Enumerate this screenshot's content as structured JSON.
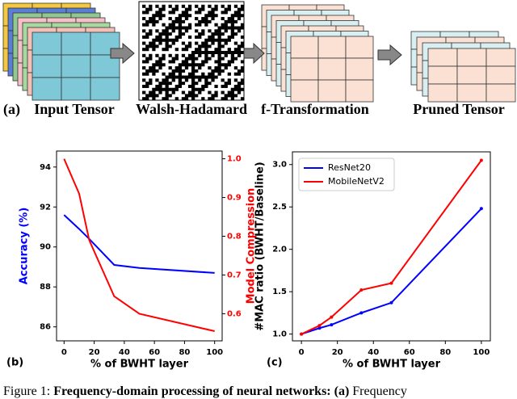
{
  "panel_a": {
    "label": "(a)",
    "items": [
      "Input Tensor",
      "Walsh-Hadamard",
      "f-Transformation",
      "Pruned Tensor"
    ]
  },
  "chart_data": [
    {
      "type": "line",
      "panel": "(b)",
      "xlabel": "% of BWHT layer",
      "ylabel": "Accuracy (%)",
      "y2label": "Model Compression",
      "x": [
        0,
        10,
        16.7,
        33.3,
        50,
        100
      ],
      "xlim": [
        -5,
        105
      ],
      "xticks": [
        0,
        20,
        40,
        60,
        80,
        100
      ],
      "ylim": [
        85.3,
        94.8
      ],
      "yticks": [
        86,
        88,
        90,
        92,
        94
      ],
      "y2lim": [
        0.53,
        1.02
      ],
      "y2ticks": [
        0.6,
        0.7,
        0.8,
        0.9,
        {
          "value": 1,
          "label": "1.0"
        }
      ],
      "ylabel_color": "#0000ff",
      "y2label_color": "#ff0000",
      "series": [
        {
          "color": "#0000ff",
          "values": [
            91.6,
            90.9,
            90.4,
            89.1,
            88.95,
            88.7
          ]
        },
        {
          "color": "#ff0000",
          "axis": "y2",
          "values": [
            1.0,
            0.91,
            0.79,
            0.645,
            0.6,
            0.555
          ]
        }
      ]
    },
    {
      "type": "line",
      "panel": "(c)",
      "xlabel": "% of BWHT layer",
      "ylabel": "#MAC ratio (BWHT/Baseline)",
      "x": [
        0,
        10,
        16.7,
        33.3,
        50,
        100
      ],
      "xlim": [
        -5,
        105
      ],
      "xticks": [
        0,
        20,
        40,
        60,
        80,
        100
      ],
      "ylim": [
        0.92,
        3.15
      ],
      "yticks": [
        {
          "value": 1,
          "label": "1.0"
        },
        1.5,
        {
          "value": 2,
          "label": "2.0"
        },
        2.5,
        {
          "value": 3,
          "label": "3.0"
        }
      ],
      "legend": "upper left",
      "markers": true,
      "series": [
        {
          "name": "ResNet20",
          "color": "#0000ff",
          "values": [
            1.0,
            1.07,
            1.11,
            1.25,
            1.37,
            2.48
          ]
        },
        {
          "name": "MobileNetV2",
          "color": "#ff0000",
          "values": [
            1.0,
            1.1,
            1.2,
            1.52,
            1.6,
            3.05
          ]
        }
      ]
    }
  ],
  "caption": [
    "Figure 1:",
    "Frequency-domain processing of neural networks:",
    "(a)",
    "Frequency"
  ]
}
